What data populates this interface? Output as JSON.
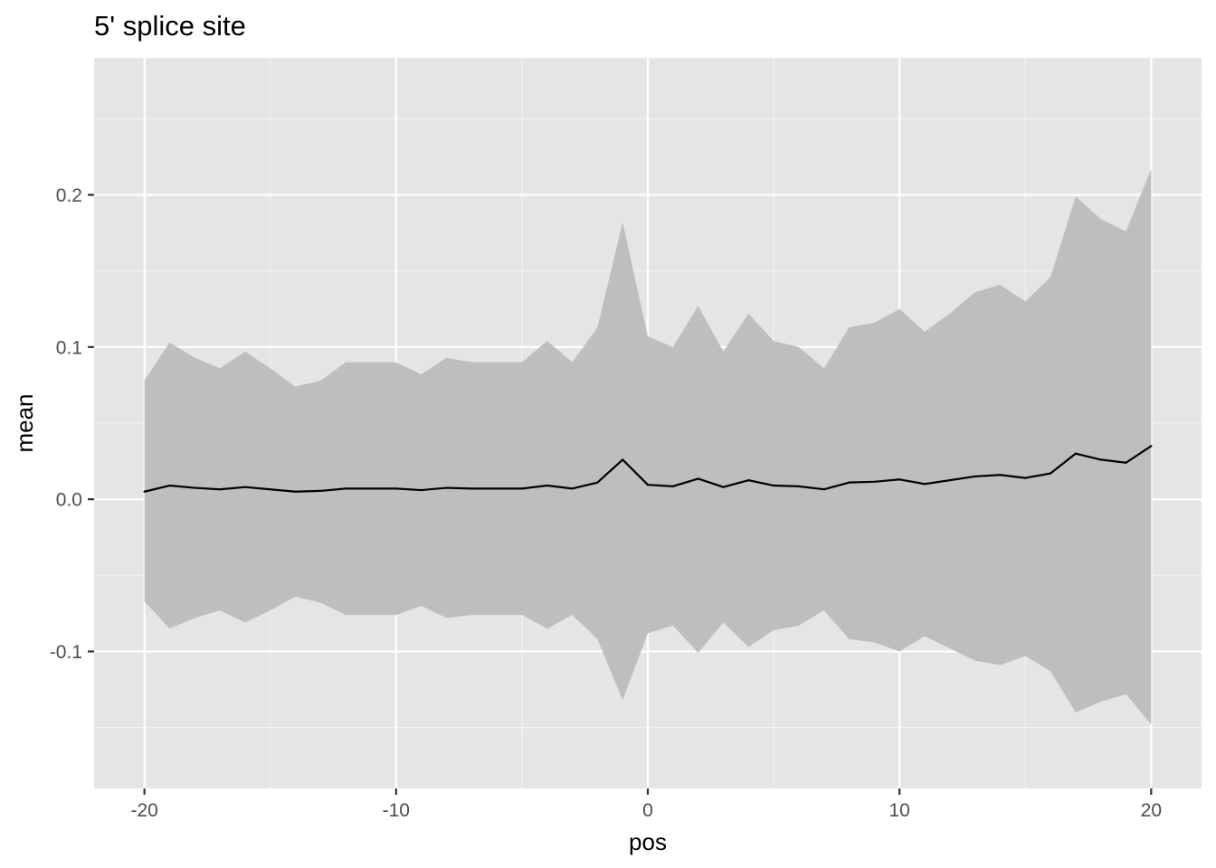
{
  "chart_data": {
    "type": "line",
    "title": "5' splice site",
    "xlabel": "pos",
    "ylabel": "mean",
    "xlim": [
      -22,
      22
    ],
    "ylim": [
      -0.19,
      0.29
    ],
    "x_ticks": [
      -20,
      -10,
      0,
      10,
      20
    ],
    "x_tick_labels": [
      "-20",
      "-10",
      "0",
      "10",
      "20"
    ],
    "y_ticks": [
      -0.1,
      0.0,
      0.1,
      0.2
    ],
    "y_tick_labels": [
      "-0.1",
      "0.0",
      "0.1",
      "0.2"
    ],
    "grid": true,
    "legend": "none",
    "colors": {
      "panel_background": "#e5e5e5",
      "grid_major": "#ffffff",
      "ribbon": "#bebebe",
      "line": "#000000",
      "tick_label": "#4d4d4d"
    },
    "x": [
      -20,
      -19,
      -18,
      -17,
      -16,
      -15,
      -14,
      -13,
      -12,
      -11,
      -10,
      -9,
      -8,
      -7,
      -6,
      -5,
      -4,
      -3,
      -2,
      -1,
      0,
      1,
      2,
      3,
      4,
      5,
      6,
      7,
      8,
      9,
      10,
      11,
      12,
      13,
      14,
      15,
      16,
      17,
      18,
      19,
      20
    ],
    "series": [
      {
        "values": [
          0.005,
          0.009,
          0.0075,
          0.0065,
          0.008,
          0.0065,
          0.005,
          0.0055,
          0.007,
          0.007,
          0.007,
          0.006,
          0.0075,
          0.007,
          0.007,
          0.007,
          0.009,
          0.007,
          0.011,
          0.026,
          0.0095,
          0.0085,
          0.0135,
          0.008,
          0.0125,
          0.009,
          0.0085,
          0.0065,
          0.011,
          0.0115,
          0.013,
          0.01,
          0.0125,
          0.015,
          0.016,
          0.014,
          0.017,
          0.03,
          0.026,
          0.024,
          0.035
        ],
        "lower": [
          -0.067,
          -0.085,
          -0.078,
          -0.073,
          -0.081,
          -0.073,
          -0.064,
          -0.068,
          -0.076,
          -0.076,
          -0.076,
          -0.07,
          -0.078,
          -0.076,
          -0.076,
          -0.076,
          -0.085,
          -0.076,
          -0.092,
          -0.132,
          -0.088,
          -0.083,
          -0.101,
          -0.081,
          -0.097,
          -0.086,
          -0.083,
          -0.073,
          -0.092,
          -0.094,
          -0.1,
          -0.09,
          -0.098,
          -0.106,
          -0.109,
          -0.103,
          -0.113,
          -0.14,
          -0.133,
          -0.128,
          -0.148
        ],
        "upper": [
          0.078,
          0.103,
          0.093,
          0.086,
          0.097,
          0.086,
          0.074,
          0.078,
          0.09,
          0.09,
          0.09,
          0.082,
          0.093,
          0.09,
          0.09,
          0.09,
          0.104,
          0.09,
          0.113,
          0.182,
          0.107,
          0.1,
          0.127,
          0.097,
          0.122,
          0.104,
          0.1,
          0.086,
          0.113,
          0.116,
          0.125,
          0.11,
          0.122,
          0.136,
          0.141,
          0.13,
          0.146,
          0.199,
          0.184,
          0.176,
          0.217
        ]
      }
    ]
  }
}
